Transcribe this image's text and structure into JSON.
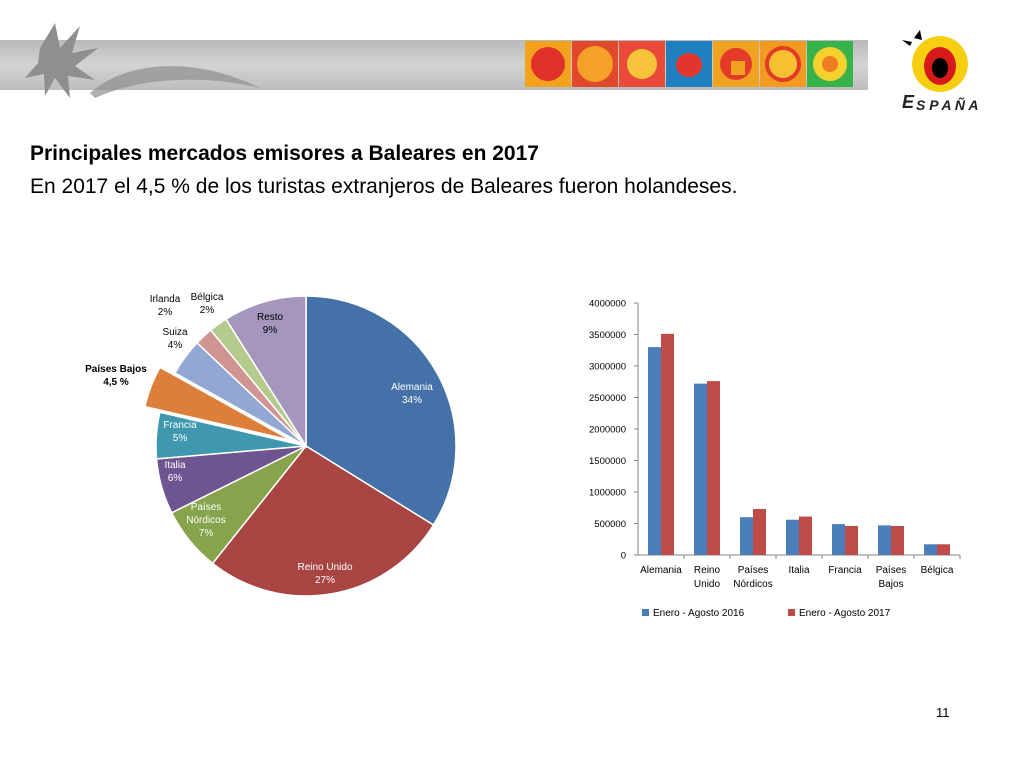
{
  "slide": {
    "title": "Principales mercados emisores a Baleares en 2017",
    "subtitle": "En 2017 el 4,5 % de los turistas extranjeros de Baleares fueron holandeses.",
    "page_number": "11",
    "logo_text": "ESPAÑA"
  },
  "chart_data": [
    {
      "type": "pie",
      "slices": [
        {
          "label": "Alemania",
          "pct_label": "34%",
          "value": 34,
          "color": "#4472a8"
        },
        {
          "label": "Reino Unido",
          "pct_label": "27%",
          "value": 27,
          "color": "#a84442"
        },
        {
          "label": "Países Nórdicos",
          "pct_label": "7%",
          "value": 7,
          "color": "#86a44c"
        },
        {
          "label": "Italia",
          "pct_label": "6%",
          "value": 6,
          "color": "#6e5490"
        },
        {
          "label": "Francia",
          "pct_label": "5%",
          "value": 5,
          "color": "#3f98b0"
        },
        {
          "label": "Países Bajos",
          "pct_label": "4,5 %",
          "value": 4.5,
          "color": "#dd7f3a",
          "exploded": true
        },
        {
          "label": "Suiza",
          "pct_label": "4%",
          "value": 4,
          "color": "#92a7d3"
        },
        {
          "label": "Irlanda",
          "pct_label": "2%",
          "value": 2,
          "color": "#d09592"
        },
        {
          "label": "Bélgica",
          "pct_label": "2%",
          "value": 2,
          "color": "#b5cb8e"
        },
        {
          "label": "Resto",
          "pct_label": "9%",
          "value": 9,
          "color": "#a496bd"
        }
      ]
    },
    {
      "type": "bar",
      "categories": [
        "Alemania",
        "Reino Unido",
        "Países Nórdicos",
        "Italia",
        "Francia",
        "Países Bajos",
        "Bélgica"
      ],
      "series": [
        {
          "name": "Enero - Agosto 2016",
          "color": "#4a7ebb",
          "values": [
            3300000,
            2720000,
            600000,
            560000,
            490000,
            470000,
            170000
          ]
        },
        {
          "name": "Enero - Agosto 2017",
          "color": "#be4b48",
          "values": [
            3510000,
            2760000,
            730000,
            610000,
            460000,
            460000,
            170000
          ]
        }
      ],
      "ylim": [
        0,
        4000000
      ],
      "yticks": [
        "0",
        "500000",
        "1000000",
        "1500000",
        "2000000",
        "2500000",
        "3000000",
        "3500000",
        "4000000"
      ],
      "legend": "bottom",
      "grid": false
    }
  ]
}
